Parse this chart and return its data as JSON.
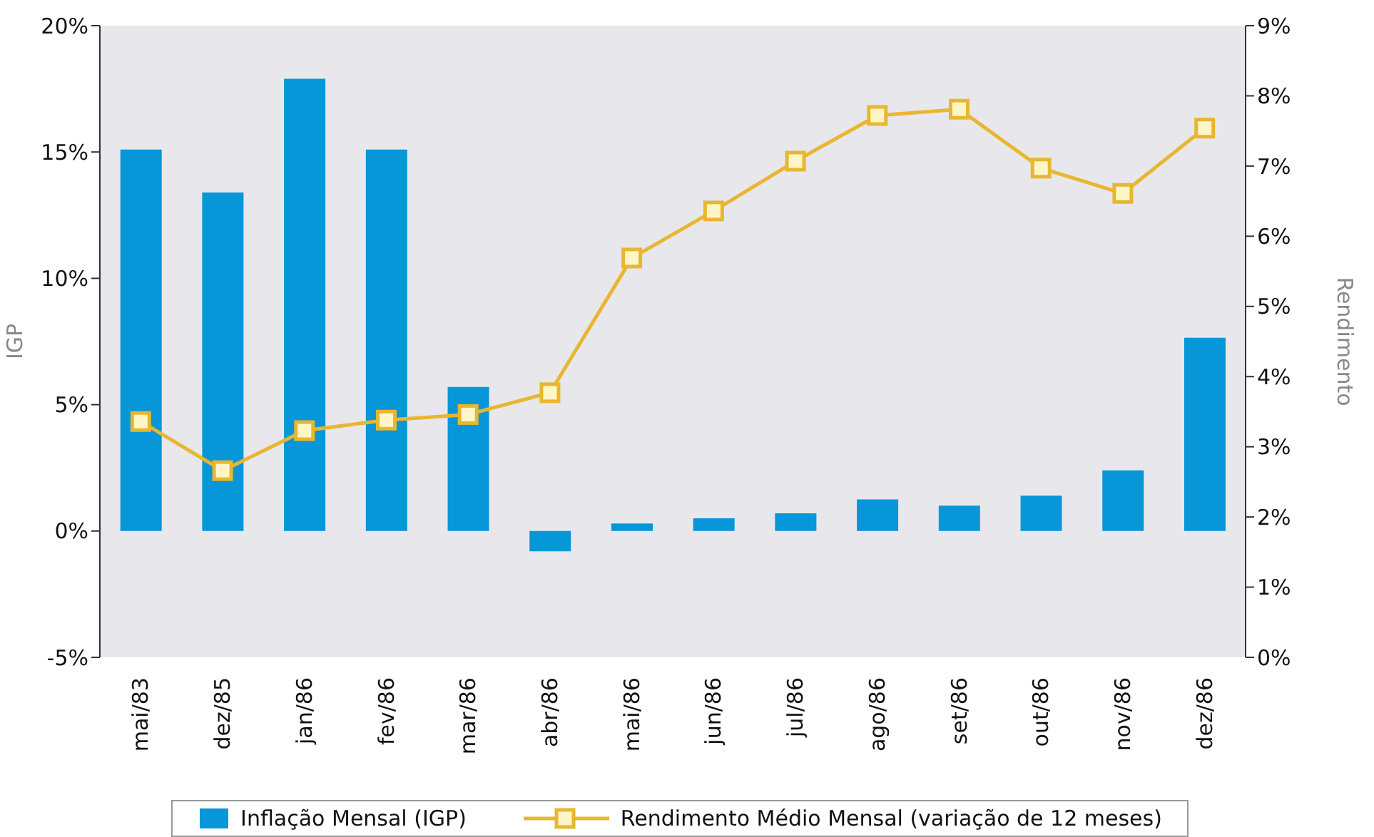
{
  "chart_data": {
    "type": "bar",
    "categories": [
      "mai/83",
      "dez/85",
      "jan/86",
      "fev/86",
      "mar/86",
      "abr/86",
      "mai/86",
      "jun/86",
      "jul/86",
      "ago/86",
      "set/86",
      "out/86",
      "nov/86",
      "dez/86"
    ],
    "series": [
      {
        "name": "Inflação Mensal (IGP)",
        "color": "#0796d8",
        "values": [
          15.1,
          13.4,
          17.9,
          15.1,
          5.7,
          -0.8,
          0.3,
          0.5,
          0.7,
          1.25,
          1.0,
          1.4,
          2.4,
          7.65
        ]
      },
      {
        "name": "Rendimento Médio Mensal (variação de 12 meses)",
        "type": "line",
        "axis": "y2",
        "color": "#e8b630",
        "marker": "square",
        "values": [
          3.36,
          2.66,
          3.23,
          3.38,
          3.46,
          3.77,
          5.69,
          6.36,
          7.07,
          7.72,
          7.81,
          6.97,
          6.61,
          7.54
        ]
      }
    ],
    "ylabel": "IGP",
    "y2label": "Rendimento",
    "ylim": [
      -5,
      20
    ],
    "yticks": [
      {
        "value": -5,
        "label": "-5%"
      },
      {
        "value": 0,
        "label": "0%"
      },
      {
        "value": 5,
        "label": "5%"
      },
      {
        "value": 10,
        "label": "10%"
      },
      {
        "value": 15,
        "label": "15%"
      },
      {
        "value": 20,
        "label": "20%"
      }
    ],
    "y2lim": [
      0,
      9
    ],
    "y2ticks": [
      {
        "value": 0,
        "label": "0%"
      },
      {
        "value": 1,
        "label": "1%"
      },
      {
        "value": 2,
        "label": "2%"
      },
      {
        "value": 3,
        "label": "3%"
      },
      {
        "value": 4,
        "label": "4%"
      },
      {
        "value": 5,
        "label": "5%"
      },
      {
        "value": 6,
        "label": "6%"
      },
      {
        "value": 7,
        "label": "7%"
      },
      {
        "value": 8,
        "label": "8%"
      },
      {
        "value": 9,
        "label": "9%"
      }
    ],
    "grid": false,
    "legend": "bottom"
  }
}
